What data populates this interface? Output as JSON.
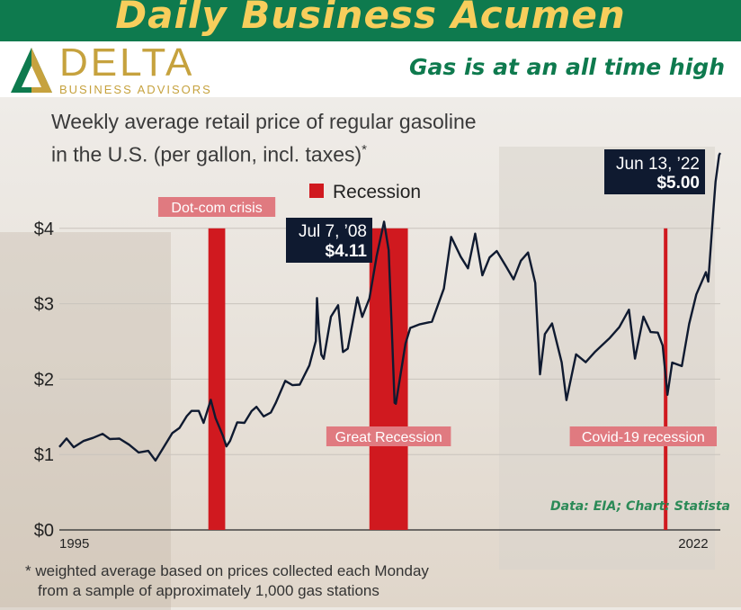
{
  "banner": {
    "title": "Daily Business Acumen",
    "tagline": "Gas is at an all time high"
  },
  "logo": {
    "word": "DELTA",
    "subtitle": "BUSINESS ADVISORS",
    "icon": "delta-triangle-icon"
  },
  "colors": {
    "banner": "#0e7a4e",
    "banner_text": "#f7ce5c",
    "line": "#0f1a30",
    "recession": "#d0191f",
    "recession_label": "#e07a80",
    "callout": "#0f1a30"
  },
  "source": "Data: EIA; Chart: Statista",
  "footnote": {
    "line1": "* weighted average based on prices collected each Monday",
    "line2": "from a sample of approximately 1,000 gas stations"
  },
  "chart_data": {
    "type": "line",
    "title_line1": "Weekly average retail price of regular gasoline",
    "title_line2": "in the U.S. (per gallon, incl. taxes)",
    "title_mark": "*",
    "ylim": [
      0,
      5
    ],
    "yticks": [
      "$0",
      "$1",
      "$2",
      "$3",
      "$4"
    ],
    "xlim": [
      1995,
      2022.5
    ],
    "xtick_labels": [
      "1995",
      "2022"
    ],
    "legend": "Recession",
    "recessions": [
      {
        "label": "Dot-com crisis",
        "start": 2001.2,
        "end": 2001.9
      },
      {
        "label": "Great Recession",
        "start": 2007.9,
        "end": 2009.5
      },
      {
        "label": "Covid-19 recession",
        "start": 2020.15,
        "end": 2020.3
      }
    ],
    "callouts": [
      {
        "date": "Jul 7, ’08",
        "value": "$4.11"
      },
      {
        "date": "Jun 13, ’22",
        "value": "$5.00"
      }
    ],
    "series": [
      {
        "x": [
          1995.0,
          1995.3,
          1995.6,
          1996.0,
          1996.4,
          1996.8,
          1997.1,
          1997.5,
          1997.9,
          1998.3,
          1998.7,
          1999.0,
          1999.3,
          1999.7,
          2000.0,
          2000.3,
          2000.5,
          2000.8,
          2001.0,
          2001.3,
          2001.5,
          2001.8,
          2001.95,
          2002.1,
          2002.4,
          2002.7,
          2003.0,
          2003.2,
          2003.5,
          2003.8,
          2004.0,
          2004.4,
          2004.7,
          2005.0,
          2005.4,
          2005.67,
          2005.72,
          2005.8,
          2005.9,
          2006.0,
          2006.3,
          2006.6,
          2006.8,
          2007.0,
          2007.4,
          2007.6,
          2007.9,
          2008.2,
          2008.51,
          2008.7,
          2008.85,
          2008.95,
          2009.0,
          2009.4,
          2009.6,
          2010.0,
          2010.5,
          2011.0,
          2011.3,
          2011.7,
          2012.0,
          2012.3,
          2012.6,
          2012.9,
          2013.2,
          2013.6,
          2013.9,
          2014.2,
          2014.5,
          2014.8,
          2015.0,
          2015.2,
          2015.5,
          2015.9,
          2016.1,
          2016.5,
          2016.9,
          2017.3,
          2017.9,
          2018.3,
          2018.7,
          2018.95,
          2019.3,
          2019.6,
          2019.9,
          2020.1,
          2020.3,
          2020.5,
          2020.9,
          2021.2,
          2021.5,
          2021.9,
          2022.0,
          2022.2,
          2022.3,
          2022.45,
          2022.5
        ],
        "y": [
          1.1,
          1.2,
          1.12,
          1.15,
          1.25,
          1.25,
          1.22,
          1.21,
          1.12,
          1.05,
          1.02,
          0.95,
          1.05,
          1.3,
          1.35,
          1.5,
          1.6,
          1.55,
          1.45,
          1.7,
          1.5,
          1.25,
          1.1,
          1.2,
          1.4,
          1.45,
          1.55,
          1.65,
          1.5,
          1.55,
          1.7,
          1.95,
          1.95,
          1.9,
          2.2,
          2.5,
          3.07,
          2.65,
          2.3,
          2.3,
          2.8,
          3.0,
          2.35,
          2.4,
          3.1,
          2.8,
          3.1,
          3.6,
          4.11,
          3.7,
          2.5,
          1.7,
          1.65,
          2.5,
          2.65,
          2.75,
          2.75,
          3.2,
          3.9,
          3.6,
          3.5,
          3.9,
          3.4,
          3.6,
          3.7,
          3.5,
          3.3,
          3.6,
          3.65,
          3.3,
          2.05,
          2.6,
          2.75,
          2.2,
          1.75,
          2.3,
          2.25,
          2.35,
          2.55,
          2.7,
          2.9,
          2.3,
          2.8,
          2.65,
          2.6,
          2.45,
          1.8,
          2.2,
          2.2,
          2.7,
          3.15,
          3.4,
          3.3,
          4.2,
          4.6,
          5.0,
          5.0
        ]
      }
    ]
  }
}
